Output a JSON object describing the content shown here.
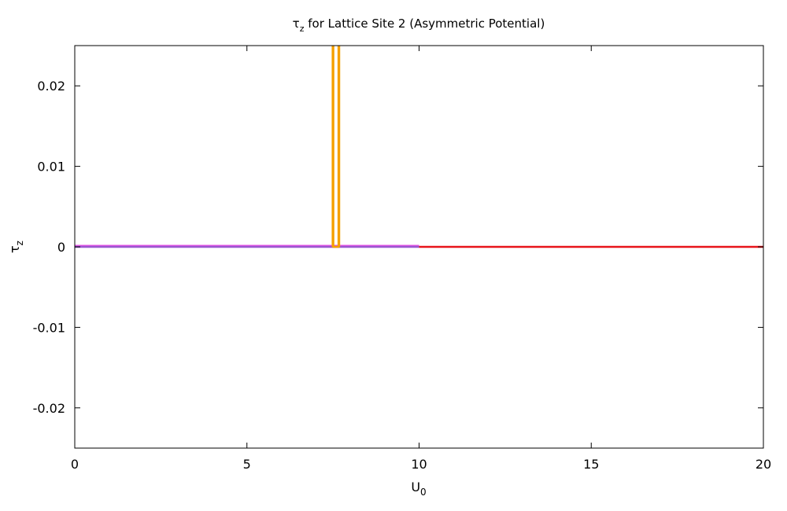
{
  "chart_data": {
    "type": "line",
    "title": "τ",
    "title_sub": "z",
    "title_rest": " for Lattice Site 2 (Asymmetric Potential)",
    "xlabel": "U",
    "xlabel_sub": "0",
    "ylabel": "τ",
    "ylabel_sub": "z",
    "xlim": [
      0,
      20
    ],
    "ylim": [
      -0.025,
      0.025
    ],
    "xticks": [
      0,
      5,
      10,
      15,
      20
    ],
    "xtick_labels": [
      "0",
      "5",
      "10",
      "15",
      "20"
    ],
    "yticks": [
      0.02,
      0.01,
      0,
      -0.01,
      -0.02
    ],
    "ytick_labels": [
      "0.02",
      "0.01",
      "0",
      "-0.01",
      "-0.02"
    ],
    "grid": false,
    "series": [
      {
        "color": "#e64ce6",
        "x": [
          0,
          0.8,
          1.6,
          2.4,
          3.2,
          4.0,
          4.8,
          5.6,
          6.4,
          7.2,
          8.0,
          8.8,
          9.6,
          10
        ],
        "y": [
          0.0001,
          0.0001,
          0.0001,
          0.0001,
          0.0001,
          0.0001,
          0.0001,
          0.0001,
          0.0001,
          0.0001,
          0.0001,
          0.0001,
          0.0001,
          0.0001
        ]
      },
      {
        "color": "#9b59d0",
        "x": [
          0,
          2,
          4,
          6,
          8,
          10
        ],
        "y": [
          0,
          0,
          0,
          0,
          0,
          0
        ]
      },
      {
        "color": "#f5a000",
        "x": [
          7.49,
          7.49,
          7.51,
          7.51,
          7.66,
          7.66,
          7.68,
          7.68
        ],
        "y": [
          0,
          0.03,
          0.03,
          0,
          0,
          0.03,
          0.03,
          0
        ]
      },
      {
        "color": "#e8141a",
        "x": [
          10,
          11,
          12,
          13,
          14,
          15,
          16,
          17,
          18,
          19,
          20
        ],
        "y": [
          0,
          0,
          0,
          0,
          0,
          0,
          0,
          0,
          0,
          0,
          0
        ]
      }
    ]
  }
}
